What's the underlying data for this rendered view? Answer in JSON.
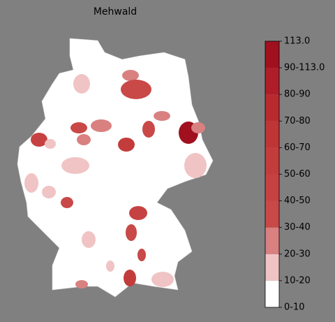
{
  "title": "Mehwald",
  "colorbar": {
    "labels": [
      "0-10",
      "10-20",
      "20-30",
      "30-40",
      "40-50",
      "50-60",
      "60-70",
      "70-80",
      "80-90",
      "90-113.0",
      "113.0"
    ],
    "segment_colors": [
      "#ffffff",
      "#f0c4c4",
      "#d98080",
      "#c94848",
      "#c64242",
      "#c33c3c",
      "#bf3536",
      "#b92a2f",
      "#ae1d28",
      "#a0101e"
    ]
  }
}
